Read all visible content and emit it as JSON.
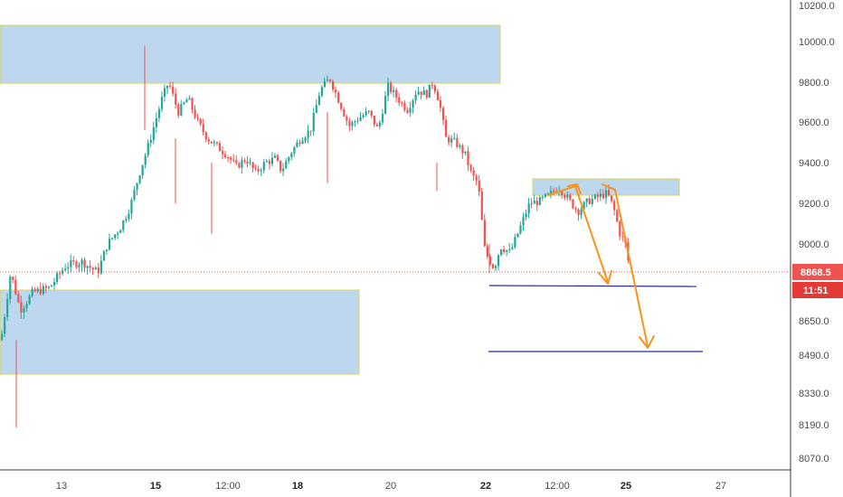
{
  "chart_data": {
    "type": "candlestick",
    "y_axis": {
      "ticks": [
        "10200.0",
        "10000.0",
        "9800.0",
        "9600.0",
        "9400.0",
        "9200.0",
        "9000.0",
        "8650.0",
        "8490.0",
        "8330.0",
        "8190.0",
        "8070.0"
      ],
      "tick_values": [
        10200,
        10000,
        9800,
        9600,
        9400,
        9200,
        9000,
        8650,
        8490,
        8330,
        8190,
        8070
      ]
    },
    "x_axis": {
      "ticks": [
        {
          "label": "13",
          "bold": false
        },
        {
          "label": "15",
          "bold": true
        },
        {
          "label": "12:00",
          "bold": false
        },
        {
          "label": "18",
          "bold": true
        },
        {
          "label": "20",
          "bold": false
        },
        {
          "label": "22",
          "bold": true
        },
        {
          "label": "12:00",
          "bold": false
        },
        {
          "label": "25",
          "bold": true
        },
        {
          "label": "27",
          "bold": false
        }
      ]
    },
    "current_price": {
      "value": "8868.5",
      "countdown": "11:51"
    },
    "price_path": [
      [
        0,
        8560
      ],
      [
        0.3,
        8870
      ],
      [
        0.6,
        8700
      ],
      [
        1.0,
        8780
      ],
      [
        1.5,
        8800
      ],
      [
        2,
        8900
      ],
      [
        2.5,
        8920
      ],
      [
        3,
        8870
      ],
      [
        3.3,
        9000
      ],
      [
        3.7,
        9080
      ],
      [
        4.0,
        9180
      ],
      [
        4.3,
        9350
      ],
      [
        4.6,
        9500
      ],
      [
        5.0,
        9720
      ],
      [
        5.2,
        9800
      ],
      [
        5.5,
        9650
      ],
      [
        5.8,
        9720
      ],
      [
        6.1,
        9600
      ],
      [
        6.4,
        9520
      ],
      [
        6.7,
        9480
      ],
      [
        7.0,
        9440
      ],
      [
        7.3,
        9380
      ],
      [
        7.6,
        9420
      ],
      [
        7.9,
        9350
      ],
      [
        8.2,
        9400
      ],
      [
        8.5,
        9420
      ],
      [
        8.7,
        9360
      ],
      [
        9.0,
        9450
      ],
      [
        9.3,
        9520
      ],
      [
        9.6,
        9560
      ],
      [
        9.9,
        9760
      ],
      [
        10.2,
        9820
      ],
      [
        10.5,
        9700
      ],
      [
        10.8,
        9580
      ],
      [
        11.1,
        9620
      ],
      [
        11.4,
        9650
      ],
      [
        11.7,
        9560
      ],
      [
        12.0,
        9780
      ],
      [
        12.3,
        9720
      ],
      [
        12.6,
        9660
      ],
      [
        12.9,
        9760
      ],
      [
        13.2,
        9740
      ],
      [
        13.4,
        9800
      ],
      [
        13.6,
        9700
      ],
      [
        13.8,
        9520
      ],
      [
        14.1,
        9500
      ],
      [
        14.4,
        9440
      ],
      [
        14.6,
        9340
      ],
      [
        14.8,
        9300
      ],
      [
        15.0,
        8980
      ],
      [
        15.1,
        8940
      ],
      [
        15.3,
        8890
      ],
      [
        15.5,
        8990
      ],
      [
        15.8,
        8960
      ],
      [
        16.1,
        9080
      ],
      [
        16.4,
        9200
      ],
      [
        16.7,
        9210
      ],
      [
        17.0,
        9240
      ],
      [
        17.3,
        9280
      ],
      [
        17.6,
        9220
      ],
      [
        17.9,
        9160
      ],
      [
        18.2,
        9210
      ],
      [
        18.5,
        9230
      ],
      [
        18.8,
        9250
      ],
      [
        19.0,
        9180
      ],
      [
        19.2,
        9050
      ],
      [
        19.4,
        8990
      ],
      [
        19.5,
        8868
      ]
    ],
    "zones": [
      {
        "name": "resistance-zone-top"
      },
      {
        "name": "resistance-zone-mid"
      },
      {
        "name": "support-zone"
      }
    ],
    "horizontal_lines": [
      {
        "name": "support-line-1"
      },
      {
        "name": "support-line-2"
      }
    ],
    "colors": {
      "up": "#26a69a",
      "down": "#ef5350",
      "zone_fill": "#bdd7ee",
      "zone_border": "#d6d65a",
      "arrow": "#f7931a",
      "hline": "#2a2a9a",
      "price_line": "#ef5350",
      "badge_price": "#ef5350",
      "badge_timer": "#e53935",
      "axis_text": "#4a4a4a"
    }
  }
}
